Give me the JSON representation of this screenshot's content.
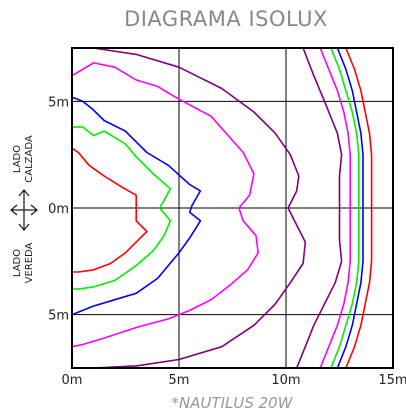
{
  "chart_data": {
    "type": "line",
    "title": "DIAGRAMA ISOLUX",
    "subtitle": "*NAUTILUS 20W",
    "side_labels": {
      "upper": [
        "LADO",
        "CALZADA"
      ],
      "lower": [
        "LADO",
        "VEREDA"
      ]
    },
    "x_ticks": [
      {
        "value": 0,
        "label": "0m"
      },
      {
        "value": 5,
        "label": "5m"
      },
      {
        "value": 10,
        "label": "10m"
      },
      {
        "value": 15,
        "label": "15m"
      }
    ],
    "y_ticks": [
      {
        "value": 5,
        "label": "5m"
      },
      {
        "value": 0,
        "label": "0m"
      },
      {
        "value": -5,
        "label": "5m"
      }
    ],
    "xlim": [
      0,
      15
    ],
    "ylim": [
      -7.5,
      7.5
    ],
    "grid": true,
    "arrow_icon": "double-headed-arrow-icon",
    "series": [
      {
        "color": "#ff0000",
        "points": [
          [
            0,
            2.8
          ],
          [
            0.3,
            2.6
          ],
          [
            0.8,
            2
          ],
          [
            1.5,
            1.5
          ],
          [
            2.3,
            1
          ],
          [
            3,
            0.6
          ],
          [
            3,
            0
          ],
          [
            3,
            -0.6
          ],
          [
            3.5,
            -1.1
          ],
          [
            3,
            -1.6
          ],
          [
            2.5,
            -2.1
          ],
          [
            1.8,
            -2.6
          ],
          [
            1,
            -2.9
          ],
          [
            0.3,
            -3
          ],
          [
            0,
            -3
          ]
        ]
      },
      {
        "color": "#00ee00",
        "points": [
          [
            0,
            3.8
          ],
          [
            0.5,
            3.8
          ],
          [
            1,
            3.4
          ],
          [
            1.5,
            3.6
          ],
          [
            2.5,
            3
          ],
          [
            3,
            2.4
          ],
          [
            3.8,
            1.6
          ],
          [
            4.6,
            0.9
          ],
          [
            4.1,
            0
          ],
          [
            4.6,
            -0.6
          ],
          [
            4.3,
            -1.3
          ],
          [
            3.8,
            -2
          ],
          [
            3,
            -2.7
          ],
          [
            2,
            -3.4
          ],
          [
            1,
            -3.7
          ],
          [
            0.3,
            -3.8
          ],
          [
            0,
            -3.8
          ]
        ]
      },
      {
        "color": "#0000ff",
        "points": [
          [
            0,
            5.2
          ],
          [
            0.5,
            5
          ],
          [
            1,
            4.6
          ],
          [
            1.5,
            4.1
          ],
          [
            2.5,
            3.6
          ],
          [
            3.5,
            2.6
          ],
          [
            4.5,
            2
          ],
          [
            5.5,
            1.1
          ],
          [
            6,
            0.8
          ],
          [
            5.6,
            0.1
          ],
          [
            5.5,
            -0.2
          ],
          [
            6,
            -0.6
          ],
          [
            5.5,
            -1.4
          ],
          [
            5,
            -2.1
          ],
          [
            4,
            -3.3
          ],
          [
            3,
            -4
          ],
          [
            2,
            -4.3
          ],
          [
            1,
            -4.6
          ],
          [
            0.5,
            -4.8
          ],
          [
            0,
            -5
          ]
        ]
      },
      {
        "color": "#ff00ff",
        "points": [
          [
            0,
            6.2
          ],
          [
            0.5,
            6.5
          ],
          [
            1,
            6.8
          ],
          [
            2,
            6.6
          ],
          [
            3,
            6
          ],
          [
            4,
            5.7
          ],
          [
            5,
            5.1
          ],
          [
            6.5,
            4.3
          ],
          [
            8,
            2.6
          ],
          [
            8.5,
            1.6
          ],
          [
            8.3,
            0.6
          ],
          [
            7.8,
            0
          ],
          [
            8,
            -0.6
          ],
          [
            8.6,
            -1.3
          ],
          [
            8.7,
            -2.1
          ],
          [
            8.2,
            -2.9
          ],
          [
            7.4,
            -3.6
          ],
          [
            6.5,
            -4.3
          ],
          [
            5.5,
            -4.8
          ],
          [
            4.5,
            -5.2
          ],
          [
            3,
            -5.6
          ],
          [
            1.5,
            -6.1
          ],
          [
            0.5,
            -6.4
          ],
          [
            0,
            -6.5
          ]
        ]
      },
      {
        "color": "#800080",
        "points": [
          [
            1,
            7.5
          ],
          [
            3,
            7.2
          ],
          [
            5,
            6.6
          ],
          [
            7,
            5.6
          ],
          [
            8.5,
            4.5
          ],
          [
            9.5,
            3.5
          ],
          [
            10.2,
            2.5
          ],
          [
            10.6,
            1.5
          ],
          [
            10.5,
            0.8
          ],
          [
            10.1,
            0
          ],
          [
            10.5,
            -0.8
          ],
          [
            10.9,
            -1.6
          ],
          [
            10.8,
            -2.6
          ],
          [
            10.2,
            -3.5
          ],
          [
            9.5,
            -4.5
          ],
          [
            8.5,
            -5.5
          ],
          [
            7,
            -6.5
          ],
          [
            5,
            -7.1
          ],
          [
            3,
            -7.4
          ],
          [
            1,
            -7.5
          ]
        ]
      },
      {
        "color": "#800080",
        "points": [
          [
            10.8,
            7.5
          ],
          [
            11.3,
            6.2
          ],
          [
            11.8,
            5
          ],
          [
            12.4,
            3.5
          ],
          [
            12.6,
            2.5
          ],
          [
            12.5,
            1.5
          ],
          [
            12.5,
            0
          ],
          [
            12.5,
            -1.5
          ],
          [
            12.6,
            -2.5
          ],
          [
            12.3,
            -3.5
          ],
          [
            11.8,
            -4.5
          ],
          [
            11.3,
            -5.5
          ],
          [
            10.9,
            -6.5
          ],
          [
            10.5,
            -7.5
          ]
        ]
      },
      {
        "color": "#ff00ff",
        "points": [
          [
            11.6,
            7.5
          ],
          [
            12,
            6.5
          ],
          [
            12.4,
            5.5
          ],
          [
            12.7,
            4.5
          ],
          [
            12.9,
            3.5
          ],
          [
            13,
            2.5
          ],
          [
            13,
            0
          ],
          [
            13,
            -2.5
          ],
          [
            12.9,
            -3.5
          ],
          [
            12.7,
            -4.5
          ],
          [
            12.4,
            -5.5
          ],
          [
            12,
            -6.5
          ],
          [
            11.6,
            -7.5
          ]
        ]
      },
      {
        "color": "#00ee00",
        "points": [
          [
            12.1,
            7.5
          ],
          [
            12.5,
            6.5
          ],
          [
            12.8,
            5.5
          ],
          [
            13.1,
            4.5
          ],
          [
            13.3,
            3.5
          ],
          [
            13.4,
            2.5
          ],
          [
            13.4,
            0
          ],
          [
            13.4,
            -2.5
          ],
          [
            13.3,
            -3.5
          ],
          [
            13.1,
            -4.5
          ],
          [
            12.8,
            -5.5
          ],
          [
            12.5,
            -6.5
          ],
          [
            12.1,
            -7.5
          ]
        ]
      },
      {
        "color": "#0000ff",
        "points": [
          [
            12.4,
            7.5
          ],
          [
            12.8,
            6.5
          ],
          [
            13.1,
            5.5
          ],
          [
            13.3,
            4.5
          ],
          [
            13.5,
            3.5
          ],
          [
            13.6,
            2.5
          ],
          [
            13.6,
            0
          ],
          [
            13.6,
            -2.5
          ],
          [
            13.5,
            -3.5
          ],
          [
            13.3,
            -4.5
          ],
          [
            13.1,
            -5.5
          ],
          [
            12.8,
            -6.5
          ],
          [
            12.4,
            -7.5
          ]
        ]
      },
      {
        "color": "#ff0000",
        "points": [
          [
            12.8,
            7.5
          ],
          [
            13.2,
            6.5
          ],
          [
            13.5,
            5.5
          ],
          [
            13.7,
            4.5
          ],
          [
            13.9,
            3.5
          ],
          [
            14,
            2.5
          ],
          [
            14,
            0
          ],
          [
            14,
            -2.5
          ],
          [
            13.9,
            -3.5
          ],
          [
            13.7,
            -4.5
          ],
          [
            13.5,
            -5.5
          ],
          [
            13.2,
            -6.5
          ],
          [
            12.8,
            -7.5
          ]
        ]
      }
    ]
  }
}
